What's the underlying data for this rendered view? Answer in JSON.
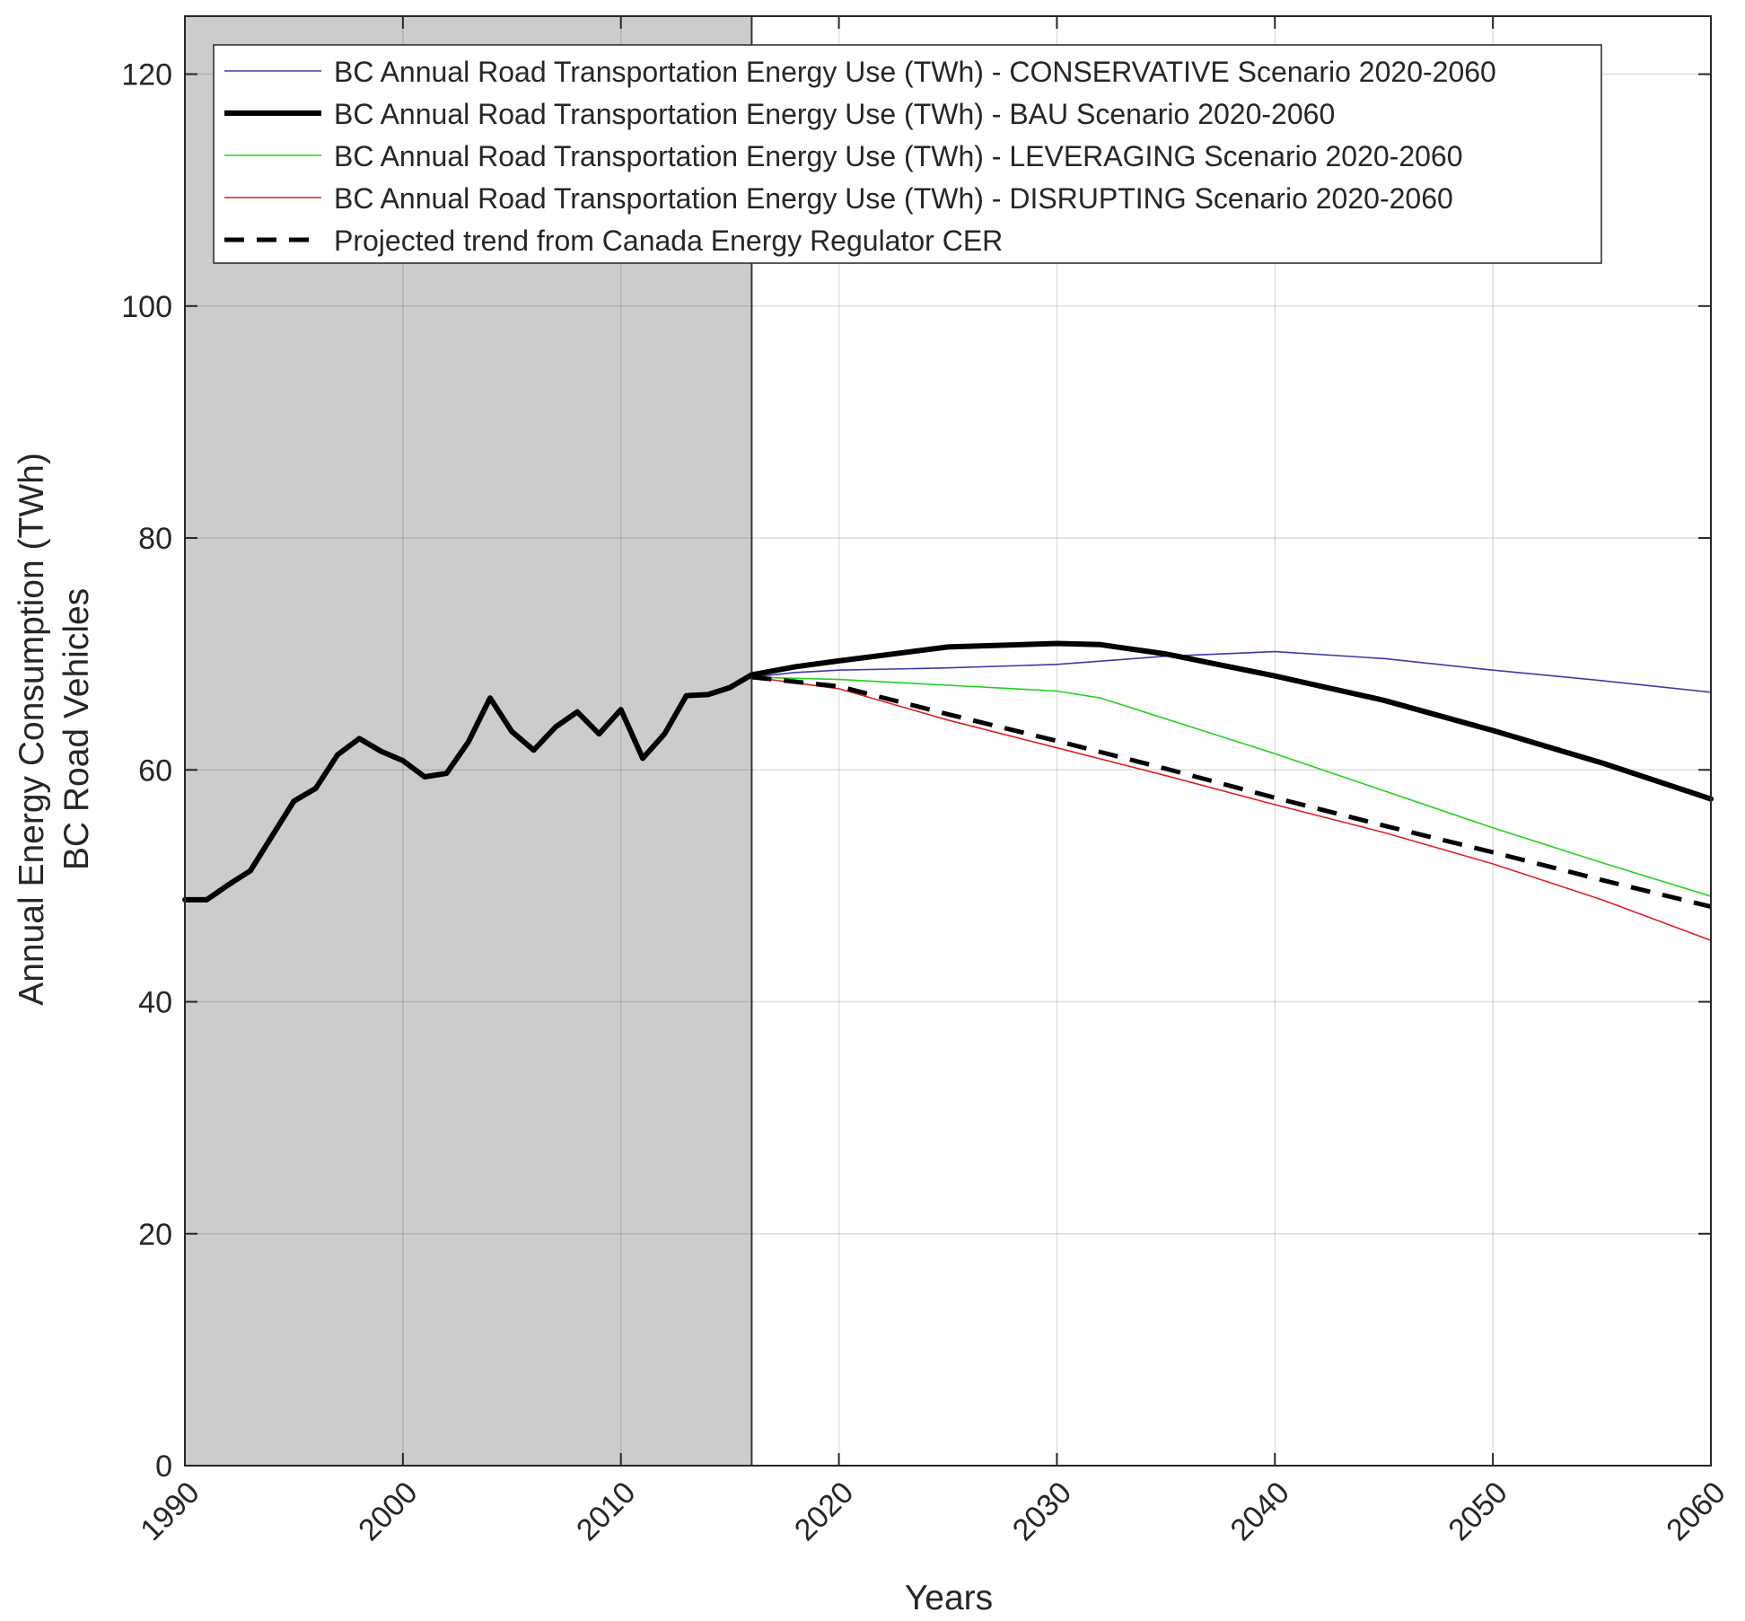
{
  "chart_data": {
    "type": "line",
    "title": "",
    "xlabel": "Years",
    "ylabel_line1": "Annual Energy Consumption (TWh)",
    "ylabel_line2": "BC Road Vehicles",
    "xlim": [
      1990,
      2060
    ],
    "ylim": [
      0,
      125
    ],
    "xticks": [
      1990,
      2000,
      2010,
      2020,
      2030,
      2040,
      2050,
      2060
    ],
    "yticks": [
      0,
      20,
      40,
      60,
      80,
      100,
      120
    ],
    "xtick_labels": [
      "1990",
      "2000",
      "2010",
      "2020",
      "2030",
      "2040",
      "2050",
      "2060"
    ],
    "ytick_labels": [
      "0",
      "20",
      "40",
      "60",
      "80",
      "100",
      "120"
    ],
    "grid": true,
    "legend_position": "top-left",
    "historical_shading": {
      "from": 1990,
      "to": 2016,
      "color": "#cccccc"
    },
    "series": [
      {
        "name": "BC Annual Road Transportation Energy Use (TWh) - CONSERVATIVE Scenario 2020-2060",
        "color": "#3a3aa8",
        "style": "solid",
        "weight": "thin",
        "points": [
          [
            2016,
            68
          ],
          [
            2018,
            68.4
          ],
          [
            2020,
            68.6
          ],
          [
            2025,
            68.8
          ],
          [
            2030,
            69.1
          ],
          [
            2035,
            69.8
          ],
          [
            2040,
            70.2
          ],
          [
            2045,
            69.6
          ],
          [
            2050,
            68.6
          ],
          [
            2055,
            67.7
          ],
          [
            2060,
            66.7
          ]
        ]
      },
      {
        "name": "BC Annual Road Transportation Energy Use (TWh) - BAU Scenario 2020-2060",
        "color": "#000000",
        "style": "solid",
        "weight": "thick",
        "points": [
          [
            1990,
            48.8
          ],
          [
            1991,
            48.8
          ],
          [
            1992,
            50.1
          ],
          [
            1993,
            51.3
          ],
          [
            1994,
            54.3
          ],
          [
            1995,
            57.3
          ],
          [
            1996,
            58.4
          ],
          [
            1997,
            61.3
          ],
          [
            1998,
            62.7
          ],
          [
            1999,
            61.6
          ],
          [
            2000,
            60.8
          ],
          [
            2001,
            59.4
          ],
          [
            2002,
            59.7
          ],
          [
            2003,
            62.4
          ],
          [
            2004,
            66.2
          ],
          [
            2005,
            63.3
          ],
          [
            2006,
            61.7
          ],
          [
            2007,
            63.7
          ],
          [
            2008,
            65
          ],
          [
            2009,
            63.1
          ],
          [
            2010,
            65.2
          ],
          [
            2011,
            61
          ],
          [
            2012,
            63.1
          ],
          [
            2013,
            66.4
          ],
          [
            2014,
            66.5
          ],
          [
            2015,
            67.1
          ],
          [
            2016,
            68.2
          ],
          [
            2018,
            68.9
          ],
          [
            2020,
            69.4
          ],
          [
            2025,
            70.6
          ],
          [
            2030,
            70.9
          ],
          [
            2032,
            70.8
          ],
          [
            2035,
            70
          ],
          [
            2040,
            68.1
          ],
          [
            2045,
            66
          ],
          [
            2050,
            63.4
          ],
          [
            2055,
            60.6
          ],
          [
            2060,
            57.5
          ]
        ]
      },
      {
        "name": "BC Annual Road Transportation Energy Use (TWh) - LEVERAGING Scenario 2020-2060",
        "color": "#1ed21e",
        "style": "solid",
        "weight": "thin",
        "points": [
          [
            2016,
            68
          ],
          [
            2020,
            67.8
          ],
          [
            2025,
            67.3
          ],
          [
            2030,
            66.8
          ],
          [
            2032,
            66.2
          ],
          [
            2035,
            64.4
          ],
          [
            2040,
            61.4
          ],
          [
            2045,
            58.2
          ],
          [
            2050,
            55
          ],
          [
            2055,
            52
          ],
          [
            2060,
            49.1
          ]
        ]
      },
      {
        "name": "BC Annual Road Transportation Energy Use (TWh) - DISRUPTING Scenario 2020-2060",
        "color": "#e02020",
        "style": "solid",
        "weight": "thin",
        "points": [
          [
            2016,
            68
          ],
          [
            2020,
            67
          ],
          [
            2025,
            64.3
          ],
          [
            2030,
            61.9
          ],
          [
            2035,
            59.5
          ],
          [
            2040,
            57
          ],
          [
            2045,
            54.6
          ],
          [
            2050,
            51.9
          ],
          [
            2055,
            48.8
          ],
          [
            2060,
            45.3
          ]
        ]
      },
      {
        "name": "Projected trend from Canada Energy Regulator CER",
        "color": "#000000",
        "style": "dashed",
        "weight": "medium",
        "points": [
          [
            2016,
            68
          ],
          [
            2020,
            67.2
          ],
          [
            2025,
            64.8
          ],
          [
            2030,
            62.5
          ],
          [
            2035,
            60.1
          ],
          [
            2040,
            57.6
          ],
          [
            2045,
            55.2
          ],
          [
            2050,
            52.9
          ],
          [
            2055,
            50.5
          ],
          [
            2060,
            48.2
          ]
        ]
      }
    ]
  }
}
